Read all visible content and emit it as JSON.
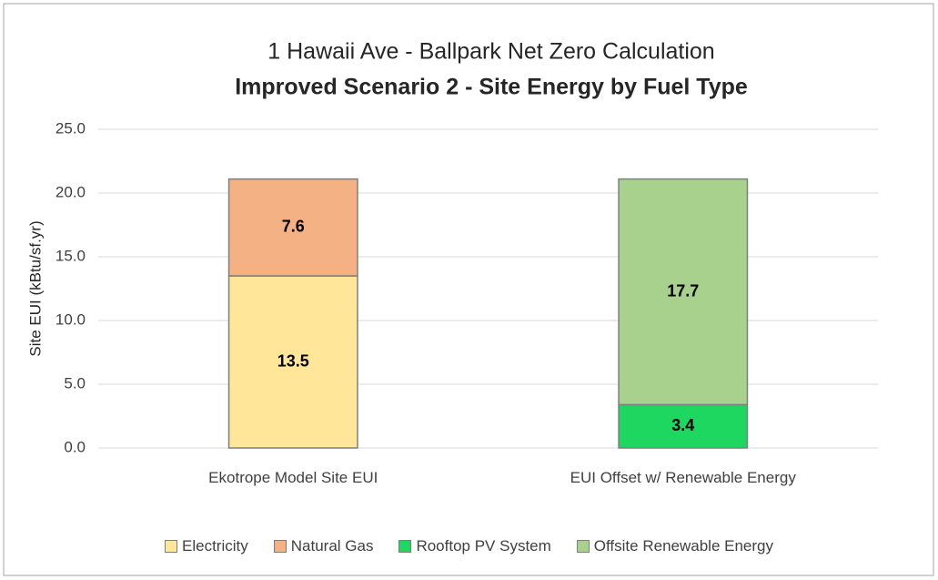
{
  "chart_data": {
    "type": "stacked_bar",
    "title": "1 Hawaii Ave - Ballpark Net Zero Calculation",
    "subtitle": "Improved Scenario 2 - Site Energy by Fuel Type",
    "y_label": "Site EUI (kBtu/sf.yr)",
    "categories": [
      "Ekotrope Model Site EUI",
      "EUI Offset w/ Renewable Energy"
    ],
    "series": [
      {
        "name": "Electricity",
        "color": "#ffe699",
        "values": [
          13.5,
          null
        ]
      },
      {
        "name": "Natural Gas",
        "color": "#f4b183",
        "values": [
          7.6,
          null
        ]
      },
      {
        "name": "Rooftop PV System",
        "color": "#1ed760",
        "values": [
          null,
          3.4
        ]
      },
      {
        "name": "Offsite Renewable Energy",
        "color": "#a9d18e",
        "values": [
          null,
          17.7
        ]
      }
    ],
    "ylim": [
      0,
      25
    ],
    "yticks": [
      {
        "value": 0,
        "label": "0.0"
      },
      {
        "value": 5,
        "label": "5.0"
      },
      {
        "value": 10,
        "label": "10.0"
      },
      {
        "value": 15,
        "label": "15.0"
      },
      {
        "value": 20,
        "label": "20.0"
      },
      {
        "value": 25,
        "label": "25.0"
      }
    ],
    "grid": true,
    "legend": "bottom"
  }
}
